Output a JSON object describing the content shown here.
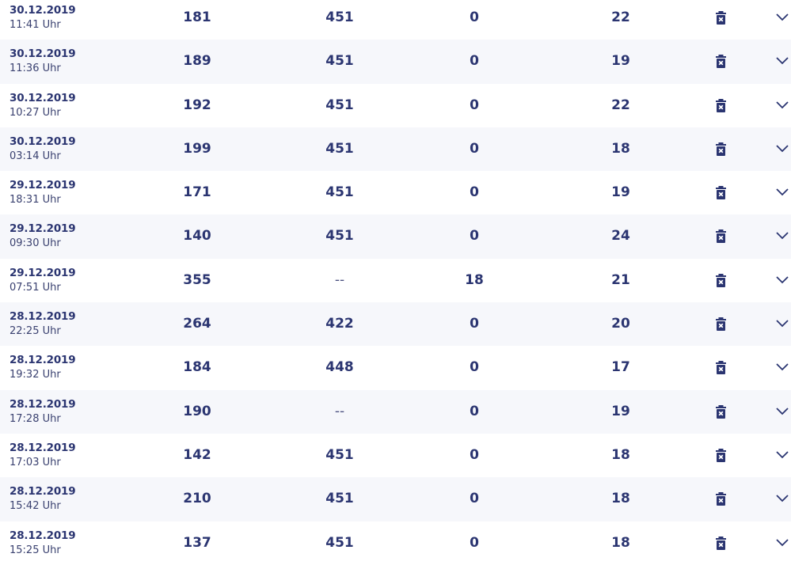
{
  "colors": {
    "text": "#2b3571",
    "row_alt": "#f6f7fb"
  },
  "icons": {
    "delete": "trash-icon",
    "expand": "chevron-down-icon"
  },
  "rows": [
    {
      "date": "30.12.2019",
      "time": "11:41 Uhr",
      "v1": "181",
      "v2": "451",
      "v3": "0",
      "v4": "22"
    },
    {
      "date": "30.12.2019",
      "time": "11:36 Uhr",
      "v1": "189",
      "v2": "451",
      "v3": "0",
      "v4": "19"
    },
    {
      "date": "30.12.2019",
      "time": "10:27 Uhr",
      "v1": "192",
      "v2": "451",
      "v3": "0",
      "v4": "22"
    },
    {
      "date": "30.12.2019",
      "time": "03:14 Uhr",
      "v1": "199",
      "v2": "451",
      "v3": "0",
      "v4": "18"
    },
    {
      "date": "29.12.2019",
      "time": "18:31 Uhr",
      "v1": "171",
      "v2": "451",
      "v3": "0",
      "v4": "19"
    },
    {
      "date": "29.12.2019",
      "time": "09:30 Uhr",
      "v1": "140",
      "v2": "451",
      "v3": "0",
      "v4": "24"
    },
    {
      "date": "29.12.2019",
      "time": "07:51 Uhr",
      "v1": "355",
      "v2": "--",
      "v3": "18",
      "v4": "21"
    },
    {
      "date": "28.12.2019",
      "time": "22:25 Uhr",
      "v1": "264",
      "v2": "422",
      "v3": "0",
      "v4": "20"
    },
    {
      "date": "28.12.2019",
      "time": "19:32 Uhr",
      "v1": "184",
      "v2": "448",
      "v3": "0",
      "v4": "17"
    },
    {
      "date": "28.12.2019",
      "time": "17:28 Uhr",
      "v1": "190",
      "v2": "--",
      "v3": "0",
      "v4": "19"
    },
    {
      "date": "28.12.2019",
      "time": "17:03 Uhr",
      "v1": "142",
      "v2": "451",
      "v3": "0",
      "v4": "18"
    },
    {
      "date": "28.12.2019",
      "time": "15:42 Uhr",
      "v1": "210",
      "v2": "451",
      "v3": "0",
      "v4": "18"
    },
    {
      "date": "28.12.2019",
      "time": "15:25 Uhr",
      "v1": "137",
      "v2": "451",
      "v3": "0",
      "v4": "18"
    }
  ]
}
